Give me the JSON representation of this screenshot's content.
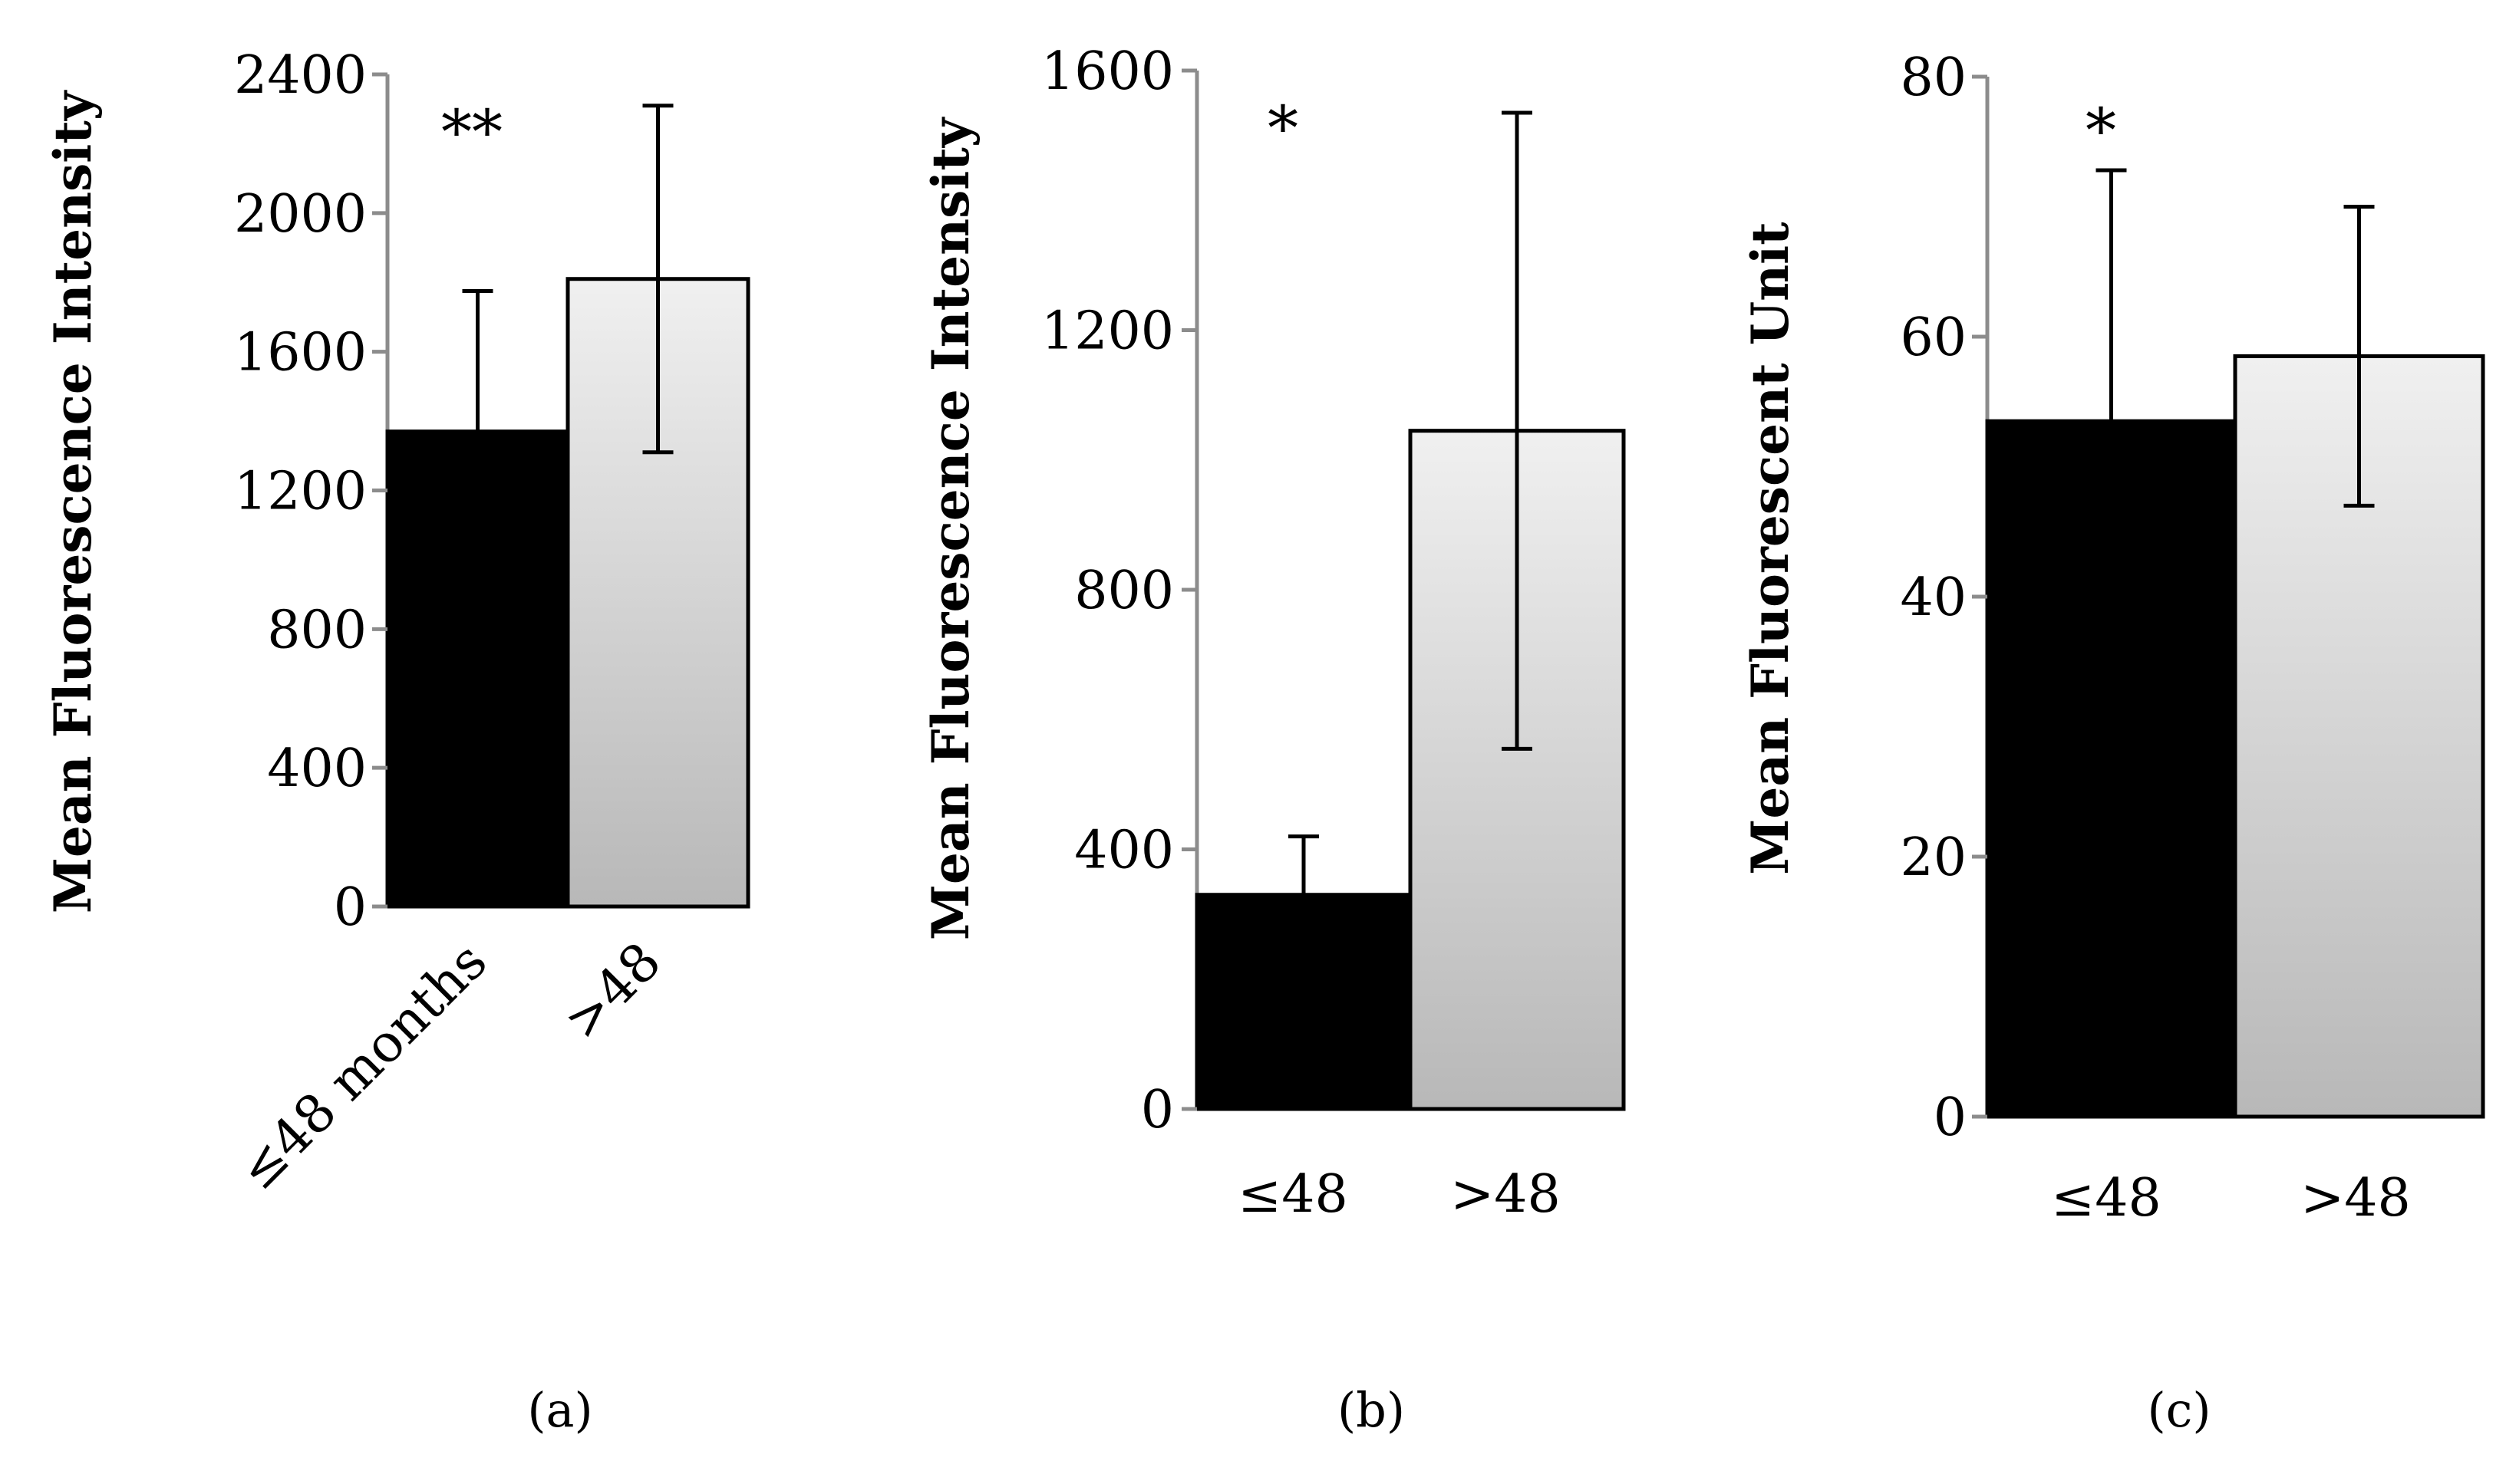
{
  "chart_data": [
    {
      "type": "bar",
      "panel_label": "a",
      "ylabel": "Mean Fluorescence Intensity",
      "xlabel": "",
      "ylim": [
        0,
        2400
      ],
      "yticks": [
        0,
        400,
        800,
        1200,
        1600,
        2000,
        2400
      ],
      "categories": [
        "≤48 months",
        ">48"
      ],
      "values": [
        1370,
        1810
      ],
      "error": [
        405,
        500
      ],
      "annotations": [
        {
          "category": "≤48 months",
          "text": "**"
        }
      ],
      "colors": [
        "#000000",
        "gradient-light-gray"
      ],
      "grid": false
    },
    {
      "type": "bar",
      "panel_label": "b",
      "ylabel": "Mean Fluorescence Intensity",
      "xlabel": "",
      "ylim": [
        0,
        1600
      ],
      "yticks": [
        0,
        400,
        800,
        1200,
        1600
      ],
      "categories": [
        "≤48",
        ">48"
      ],
      "values": [
        330,
        1045
      ],
      "error": [
        90,
        490
      ],
      "annotations": [
        {
          "category": "≤48",
          "text": "*"
        }
      ],
      "colors": [
        "#000000",
        "gradient-light-gray"
      ],
      "grid": false
    },
    {
      "type": "bar",
      "panel_label": "c",
      "ylabel": "Mean Fluorescent Unit",
      "xlabel": "",
      "ylim": [
        0,
        80
      ],
      "yticks": [
        0,
        20,
        40,
        60,
        80
      ],
      "categories": [
        "≤48",
        ">48"
      ],
      "values": [
        53.5,
        58.5
      ],
      "error": [
        19.3,
        11.5
      ],
      "annotations": [
        {
          "category": "≤48",
          "text": "*"
        }
      ],
      "colors": [
        "#000000",
        "gradient-light-gray"
      ],
      "grid": false
    }
  ],
  "captions": [
    "(a)",
    "(b)",
    "(c)"
  ],
  "colors": {
    "dark_bar": "#000000",
    "light_top": "#f0f0f0",
    "light_bottom": "#b8b8b8",
    "axis": "#8c8c8c"
  }
}
